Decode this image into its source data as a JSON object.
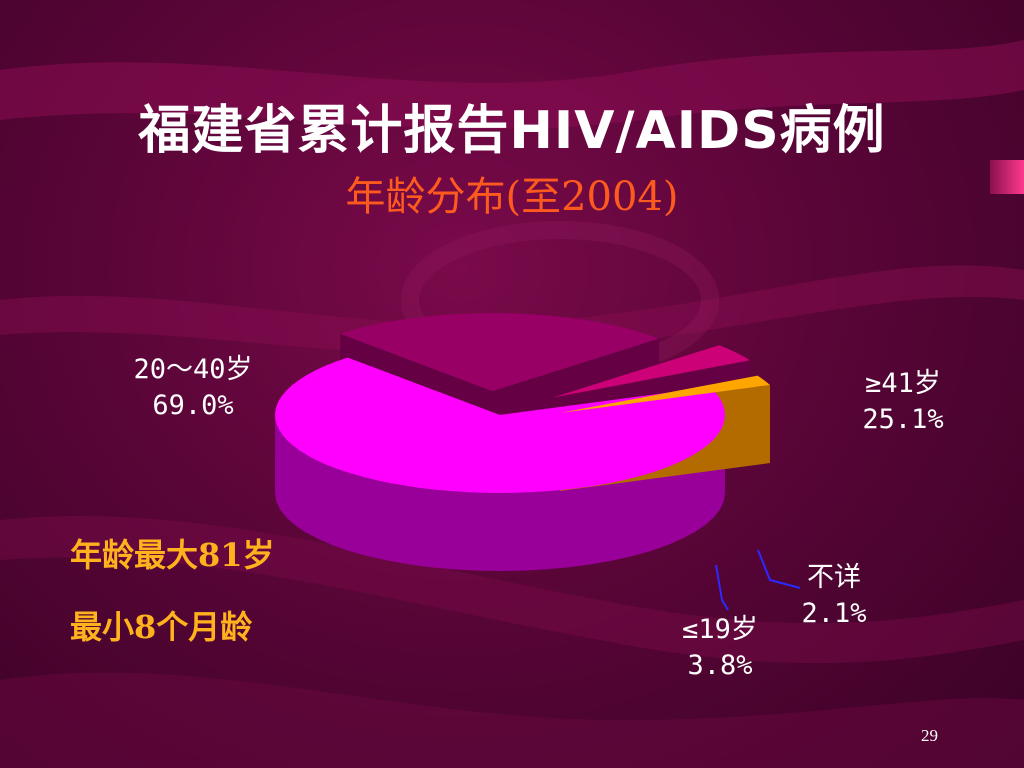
{
  "slide": {
    "title": "福建省累计报告HIV/AIDS病例",
    "subtitle": "年龄分布(至2004)",
    "notes": [
      "年龄最大81岁",
      "最小8个月龄"
    ],
    "page_number": "29",
    "colors": {
      "background": "#5a0538",
      "title": "#ffffff",
      "subtitle": "#ff5a1e",
      "notes": "#ffb21e"
    }
  },
  "chart_data": {
    "type": "pie",
    "title": "",
    "slices": [
      {
        "label": "20～40岁",
        "value": 69.0,
        "value_label": "69.0%",
        "color": "#ff00ff",
        "side_color": "#990099",
        "exploded": false
      },
      {
        "label": "≥41岁",
        "value": 25.1,
        "value_label": "25.1%",
        "color": "#990066",
        "side_color": "#660044",
        "exploded": true
      },
      {
        "label": "≤19岁",
        "value": 3.8,
        "value_label": "3.8%",
        "color": "#cc0077",
        "side_color": "#660044",
        "exploded": true
      },
      {
        "label": "不详",
        "value": 2.1,
        "value_label": "2.1%",
        "color": "#ffa500",
        "side_color": "#b36b00",
        "exploded": true
      }
    ]
  }
}
